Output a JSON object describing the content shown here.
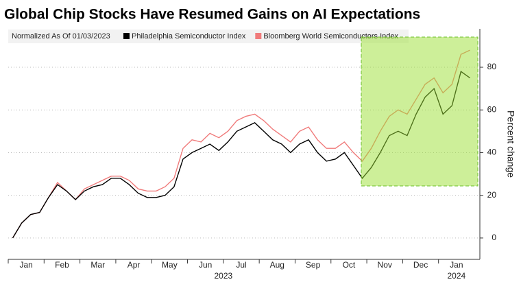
{
  "chart_data": {
    "type": "line",
    "title": "Global Chip Stocks Have Resumed Gains on AI Expectations",
    "legend_note": "Normalized As Of 01/03/2023",
    "y_label": "Percent change",
    "categories": [
      "Jan",
      null,
      null,
      null,
      "Feb",
      null,
      null,
      null,
      "Mar",
      null,
      null,
      null,
      "Apr",
      null,
      null,
      null,
      "May",
      null,
      null,
      null,
      "Jun",
      null,
      null,
      null,
      "Jul",
      null,
      null,
      null,
      "Aug",
      null,
      null,
      null,
      "Sep",
      null,
      null,
      null,
      "Oct",
      null,
      null,
      null,
      "Nov",
      null,
      null,
      null,
      "Dec",
      null,
      null,
      null,
      "Jan",
      null,
      null,
      null
    ],
    "years": [
      "2023",
      "2024"
    ],
    "series": [
      {
        "name": "Philadelphia Semiconductor Index",
        "color": "#000000",
        "values": [
          0,
          7,
          11,
          12,
          19,
          25,
          22,
          18,
          22,
          24,
          25,
          28,
          28,
          25,
          21,
          19,
          19,
          20,
          24,
          37,
          40,
          42,
          44,
          41,
          45,
          50,
          52,
          54,
          50,
          46,
          44,
          40,
          44,
          46,
          40,
          36,
          37,
          40,
          34,
          28,
          33,
          40,
          48,
          50,
          48,
          58,
          66,
          70,
          58,
          62,
          78,
          75
        ]
      },
      {
        "name": "Bloomberg World Semiconductors Index",
        "color": "#f07b7b",
        "values": [
          0,
          7,
          11,
          12,
          19,
          26,
          22,
          18,
          23,
          25,
          27,
          29,
          29,
          27,
          23,
          22,
          22,
          24,
          28,
          42,
          46,
          45,
          49,
          47,
          50,
          55,
          57,
          58,
          55,
          51,
          48,
          45,
          50,
          52,
          46,
          42,
          42,
          45,
          40,
          36,
          42,
          50,
          57,
          60,
          58,
          65,
          72,
          75,
          68,
          72,
          86,
          88
        ]
      }
    ],
    "ylim": [
      -10,
      98
    ],
    "yticks": [
      0,
      20,
      40,
      60,
      80
    ],
    "grid": true
  }
}
